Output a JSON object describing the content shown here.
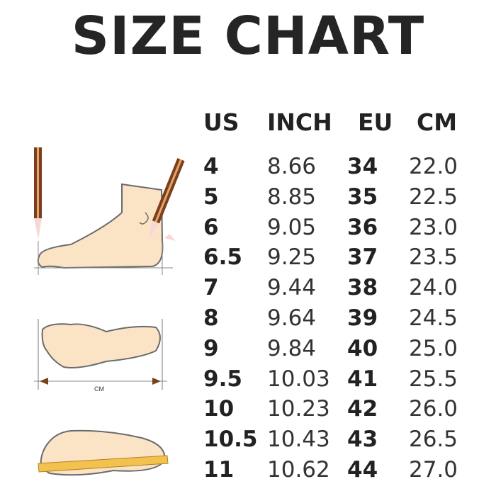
{
  "title": "SIZE CHART",
  "headers": [
    "US",
    "INCH",
    "EU",
    "CM"
  ],
  "rows": [
    [
      "4",
      "8.66",
      "34",
      "22.0"
    ],
    [
      "5",
      "8.85",
      "35",
      "22.5"
    ],
    [
      "6",
      "9.05",
      "36",
      "23.0"
    ],
    [
      "6.5",
      "9.25",
      "37",
      "23.5"
    ],
    [
      "7",
      "9.44",
      "38",
      "24.0"
    ],
    [
      "8",
      "9.64",
      "39",
      "24.5"
    ],
    [
      "9",
      "9.84",
      "40",
      "25.0"
    ],
    [
      "9.5",
      "10.03",
      "41",
      "25.5"
    ],
    [
      "10",
      "10.23",
      "42",
      "26.0"
    ],
    [
      "10.5",
      "10.43",
      "43",
      "26.5"
    ],
    [
      "11",
      "10.62",
      "44",
      "27.0"
    ]
  ],
  "illustration": {
    "measure_label": "CM"
  },
  "colors": {
    "skin": "#fbe3c6",
    "outline": "#6b6b6b",
    "pencil": "#7a3f1c",
    "ruler": "#f2c14e"
  }
}
